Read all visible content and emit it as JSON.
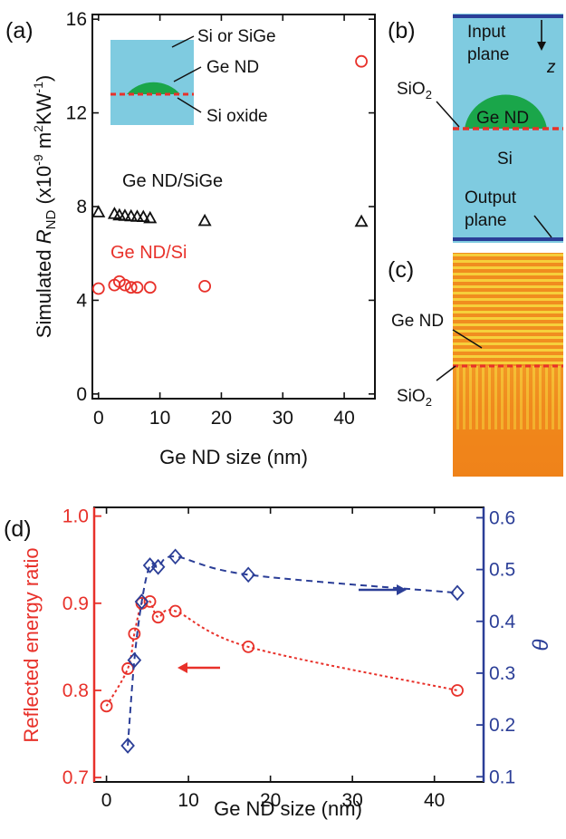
{
  "colors": {
    "red": "#e8312a",
    "blue": "#2b3e97",
    "black": "#111111",
    "si_blue": "#7fcbe0",
    "ge_green": "#1aa64a",
    "sim_orange": "#f08a1e",
    "sim_yellow": "#f5d23a"
  },
  "panel_labels": {
    "a": "(a)",
    "b": "(b)",
    "c": "(c)",
    "d": "(d)"
  },
  "panel_a": {
    "inset_labels": {
      "top": "Si or SiGe",
      "middle": "Ge ND",
      "bottom": "Si oxide"
    },
    "annotations": {
      "sige": "Ge ND/SiGe",
      "si": "Ge ND/Si"
    }
  },
  "panel_b": {
    "labels": {
      "input_line1": "Input",
      "input_line2": "plane",
      "z": "z",
      "sio2": "SiO",
      "sio2_sub": "2",
      "gend": "Ge ND",
      "si": "Si",
      "output_line1": "Output",
      "output_line2": "plane"
    }
  },
  "panel_c": {
    "labels": {
      "gend": "Ge ND",
      "sio2": "SiO",
      "sio2_sub": "2"
    }
  },
  "chart_data": [
    {
      "id": "a",
      "type": "scatter",
      "xlabel": "Ge ND size (nm)",
      "ylabel": {
        "prefix": "Simulated ",
        "var": "R",
        "sub": "ND",
        "unit_open": " (x10",
        "exp1": "-9",
        "unit_mid": " m",
        "exp2": "2",
        "unit_mid2": "KW",
        "exp3": "-1",
        "unit_close": ")"
      },
      "xlim": [
        -1,
        45
      ],
      "ylim": [
        -0.2,
        16.2
      ],
      "xticks": [
        0,
        10,
        20,
        30,
        40
      ],
      "yticks": [
        0,
        4,
        8,
        12,
        16
      ],
      "series": [
        {
          "name": "Ge ND/SiGe",
          "marker": "triangle",
          "color": "#111111",
          "x": [
            0,
            2.6,
            3.4,
            4.3,
            5.3,
            6.3,
            7.3,
            8.4,
            17.3,
            42.8
          ],
          "y": [
            7.75,
            7.68,
            7.62,
            7.6,
            7.58,
            7.56,
            7.55,
            7.5,
            7.38,
            7.35
          ]
        },
        {
          "name": "Ge ND/Si",
          "marker": "circle",
          "color": "#e8312a",
          "x": [
            0,
            2.6,
            3.4,
            4.3,
            5.3,
            6.3,
            8.4,
            17.3,
            42.8
          ],
          "y": [
            4.5,
            4.65,
            4.8,
            4.65,
            4.55,
            4.55,
            4.55,
            4.6,
            14.2
          ]
        }
      ]
    },
    {
      "id": "d",
      "type": "scatter",
      "xlabel": "Ge ND size (nm)",
      "ylabel_left": "Reflected energy ratio",
      "ylabel_right": "θ",
      "xlim": [
        -1.5,
        46
      ],
      "ylim_left": [
        0.695,
        1.01
      ],
      "ylim_right": [
        0.09,
        0.62
      ],
      "xticks": [
        0,
        10,
        20,
        30,
        40
      ],
      "yticks_left": [
        0.7,
        0.8,
        0.9,
        1.0
      ],
      "ytick_labels_left": [
        "0.7",
        "0.8",
        "0.9",
        "1.0"
      ],
      "yticks_right": [
        0.1,
        0.2,
        0.3,
        0.4,
        0.5,
        0.6
      ],
      "ytick_labels_right": [
        "0.1",
        "0.2",
        "0.3",
        "0.4",
        "0.5",
        "0.6"
      ],
      "series": [
        {
          "name": "Reflected energy ratio",
          "axis": "left",
          "marker": "circle",
          "color": "#e8312a",
          "x": [
            0,
            2.6,
            3.4,
            4.3,
            5.3,
            6.3,
            8.4,
            17.3,
            42.8
          ],
          "y": [
            0.782,
            0.825,
            0.865,
            0.9,
            0.902,
            0.884,
            0.891,
            0.85,
            0.8
          ]
        },
        {
          "name": "θ",
          "axis": "right",
          "marker": "diamond",
          "color": "#2b3e97",
          "x": [
            2.6,
            3.4,
            4.3,
            5.3,
            6.3,
            8.4,
            17.3,
            42.8
          ],
          "y": [
            0.16,
            0.325,
            0.438,
            0.508,
            0.505,
            0.525,
            0.49,
            0.455
          ]
        }
      ]
    }
  ]
}
